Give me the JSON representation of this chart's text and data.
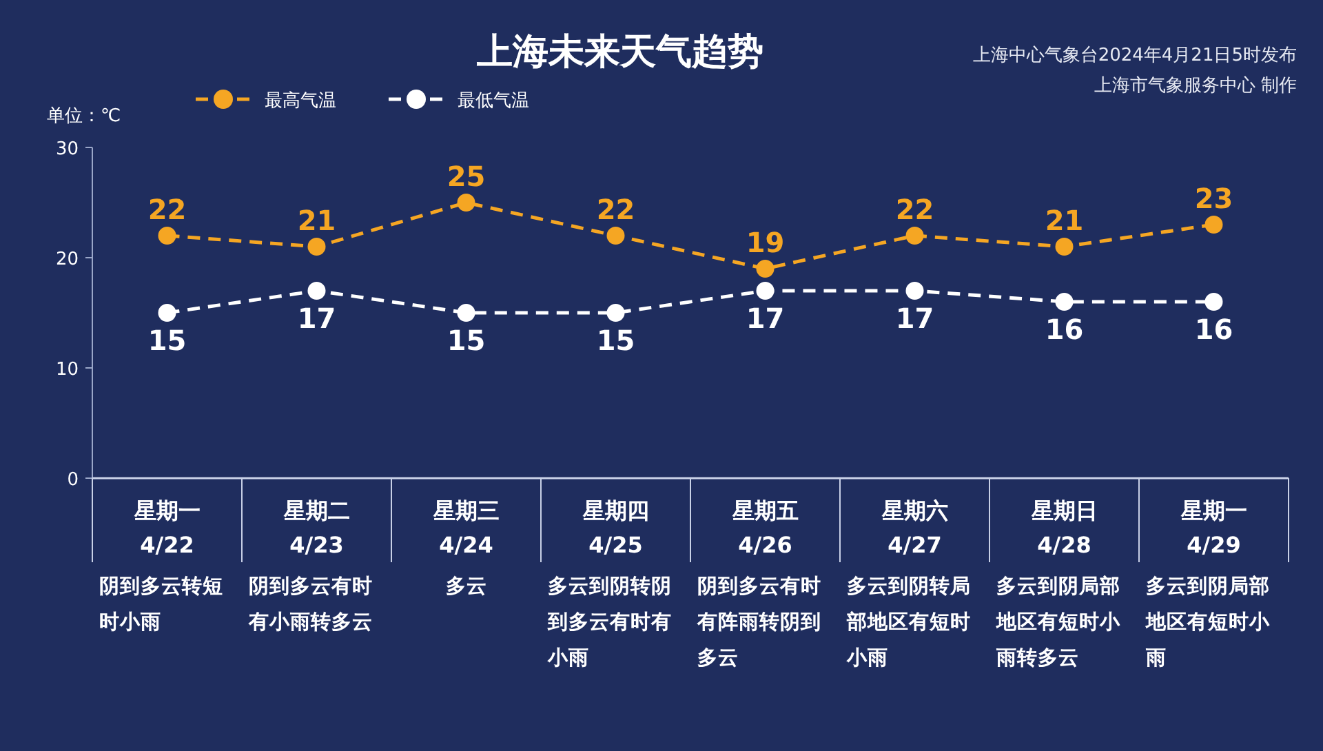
{
  "chart_data": {
    "type": "line",
    "title": "上海未来天气趋势",
    "ylabel": "单位：℃",
    "categories": [
      "星期一 4/22",
      "星期二 4/23",
      "星期三 4/24",
      "星期四 4/25",
      "星期五 4/26",
      "星期六 4/27",
      "星期日 4/28",
      "星期一 4/29"
    ],
    "series": [
      {
        "name": "最高气温",
        "color": "#f5a623",
        "values": [
          22,
          21,
          25,
          22,
          19,
          22,
          21,
          23
        ]
      },
      {
        "name": "最低气温",
        "color": "#ffffff",
        "values": [
          15,
          17,
          15,
          15,
          17,
          17,
          16,
          16
        ]
      }
    ],
    "ylim": [
      0,
      30
    ],
    "yticks": [
      0,
      10,
      20,
      30
    ],
    "grid": false,
    "legend": "top left",
    "marker": "circle",
    "line_style": "dashed",
    "data_labels": true,
    "annotations": [
      "上海中心气象台2024年4月21日5时发布",
      "上海市气象服务中心 制作",
      "阴到多云转短时小雨",
      "阴到多云有时有小雨转多云",
      "多云",
      "多云到阴转阴到多云有时有小雨",
      "阴到多云有时有阵雨转阴到多云",
      "多云到阴转局部地区有短时小雨",
      "多云到阴局部地区有短时小雨转多云",
      "多云到阴局部地区有短时小雨"
    ]
  }
}
